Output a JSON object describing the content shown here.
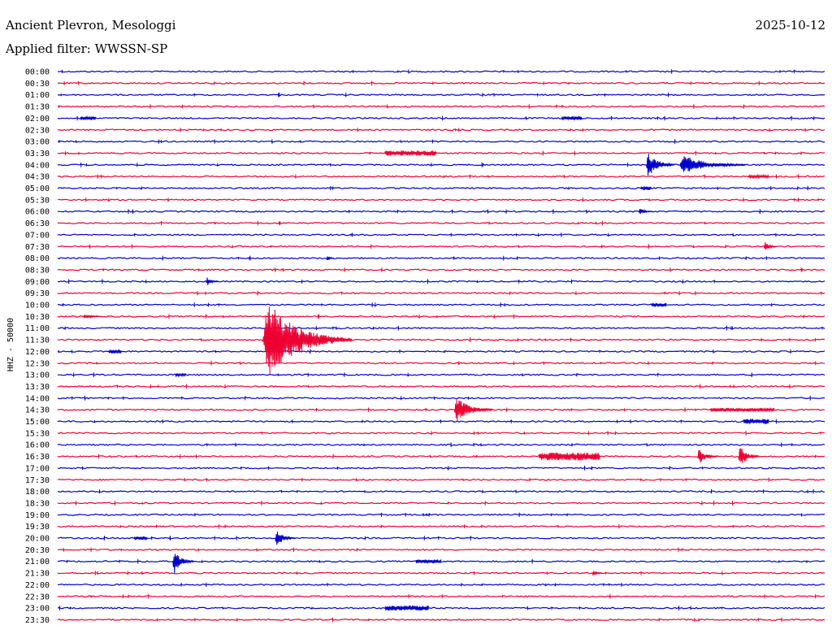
{
  "header": {
    "station": "Ancient Plevron, Mesologgi",
    "filter": "Applied filter: WWSSN-SP",
    "date": "2025-10-12"
  },
  "chart_data": {
    "type": "line",
    "title": "Ancient Plevron, Mesologgi",
    "subtitle": "Applied filter: WWSSN-SP",
    "date": "2025-10-12",
    "ylabel": "HHZ - 50000",
    "xlabel": "",
    "grid": false,
    "colors": {
      "even_line": "#0000cc",
      "odd_line": "#ee0033",
      "text": "#000000"
    },
    "y_tick_labels": [
      "00:00",
      "00:30",
      "01:00",
      "01:30",
      "02:00",
      "02:30",
      "03:00",
      "03:30",
      "04:00",
      "04:30",
      "05:00",
      "05:30",
      "06:00",
      "06:30",
      "07:00",
      "07:30",
      "08:00",
      "08:30",
      "09:00",
      "09:30",
      "10:00",
      "10:30",
      "11:00",
      "11:30",
      "12:00",
      "12:30",
      "13:00",
      "13:30",
      "14:00",
      "14:30",
      "15:00",
      "15:30",
      "16:00",
      "16:30",
      "17:00",
      "17:30",
      "18:00",
      "18:30",
      "19:00",
      "19:30",
      "20:00",
      "20:30",
      "21:00",
      "21:30",
      "22:00",
      "22:30",
      "23:00",
      "23:30"
    ],
    "line_minutes": 30,
    "events": [
      {
        "line": "04:00",
        "minute": 23.0,
        "amplitude": 2.0,
        "duration": 1.1
      },
      {
        "line": "04:00",
        "minute": 24.3,
        "amplitude": 1.5,
        "duration": 2.6
      },
      {
        "line": "11:30",
        "minute": 8.0,
        "amplitude": 6.0,
        "duration": 3.5
      },
      {
        "line": "14:30",
        "minute": 15.5,
        "amplitude": 2.0,
        "duration": 1.5
      },
      {
        "line": "16:30",
        "minute": 25.0,
        "amplitude": 1.2,
        "duration": 0.8
      },
      {
        "line": "16:30",
        "minute": 26.6,
        "amplitude": 1.8,
        "duration": 0.8
      },
      {
        "line": "20:00",
        "minute": 8.5,
        "amplitude": 1.3,
        "duration": 0.8
      },
      {
        "line": "21:00",
        "minute": 4.5,
        "amplitude": 2.0,
        "duration": 0.8
      },
      {
        "line": "07:30",
        "minute": 27.6,
        "amplitude": 0.8,
        "duration": 0.5
      },
      {
        "line": "09:00",
        "minute": 5.8,
        "amplitude": 0.7,
        "duration": 0.5
      },
      {
        "line": "10:30",
        "minute": 1.0,
        "amplitude": 0.5,
        "duration": 0.7
      },
      {
        "line": "06:00",
        "minute": 22.7,
        "amplitude": 0.5,
        "duration": 0.6
      },
      {
        "line": "08:00",
        "minute": 10.5,
        "amplitude": 0.6,
        "duration": 0.3
      },
      {
        "line": "21:30",
        "minute": 20.9,
        "amplitude": 0.5,
        "duration": 0.4
      }
    ],
    "noise_bands": [
      {
        "line": "03:30",
        "minute_start": 12.8,
        "minute_end": 14.8,
        "amplitude": 0.4
      },
      {
        "line": "16:30",
        "minute_start": 18.8,
        "minute_end": 21.2,
        "amplitude": 0.6
      },
      {
        "line": "23:00",
        "minute_start": 12.8,
        "minute_end": 14.5,
        "amplitude": 0.4
      },
      {
        "line": "20:00",
        "minute_start": 3.0,
        "minute_end": 3.5,
        "amplitude": 0.3
      },
      {
        "line": "14:30",
        "minute_start": 25.5,
        "minute_end": 28.0,
        "amplitude": 0.3
      },
      {
        "line": "15:00",
        "minute_start": 26.8,
        "minute_end": 27.8,
        "amplitude": 0.4
      },
      {
        "line": "02:00",
        "minute_start": 0.9,
        "minute_end": 1.5,
        "amplitude": 0.3
      },
      {
        "line": "02:00",
        "minute_start": 19.7,
        "minute_end": 20.5,
        "amplitude": 0.3
      },
      {
        "line": "12:00",
        "minute_start": 2.0,
        "minute_end": 2.5,
        "amplitude": 0.3
      },
      {
        "line": "04:30",
        "minute_start": 27.0,
        "minute_end": 27.8,
        "amplitude": 0.2
      },
      {
        "line": "10:00",
        "minute_start": 23.2,
        "minute_end": 23.8,
        "amplitude": 0.3
      },
      {
        "line": "21:00",
        "minute_start": 14.0,
        "minute_end": 15.0,
        "amplitude": 0.3
      },
      {
        "line": "05:00",
        "minute_start": 22.8,
        "minute_end": 23.2,
        "amplitude": 0.3
      },
      {
        "line": "13:00",
        "minute_start": 4.6,
        "minute_end": 5.0,
        "amplitude": 0.2
      }
    ]
  }
}
